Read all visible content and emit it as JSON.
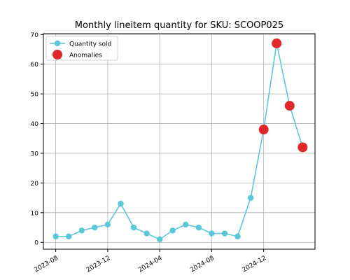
{
  "chart_data": {
    "type": "line",
    "title": "Monthly lineitem quantity for SKU: SCOOP025",
    "x": [
      "2023-08",
      "2023-09",
      "2023-10",
      "2023-11",
      "2023-12",
      "2024-01",
      "2024-02",
      "2024-03",
      "2024-04",
      "2024-05",
      "2024-06",
      "2024-07",
      "2024-08",
      "2024-09",
      "2024-10",
      "2024-11",
      "2024-12",
      "2025-01",
      "2025-02",
      "2025-03"
    ],
    "series": [
      {
        "name": "Quantity sold",
        "color": "#5bc8da",
        "style": "line-markers",
        "values": [
          2,
          2,
          4,
          5,
          6,
          13,
          5,
          3,
          1,
          4,
          6,
          5,
          3,
          3,
          2,
          15,
          38,
          67,
          46,
          32
        ]
      },
      {
        "name": "Anomalies",
        "color": "#e0282a",
        "style": "markers",
        "values": [
          null,
          null,
          null,
          null,
          null,
          null,
          null,
          null,
          null,
          null,
          null,
          null,
          null,
          null,
          null,
          null,
          38,
          67,
          46,
          32
        ]
      }
    ],
    "xticks": [
      "2023-08",
      "2023-12",
      "2024-04",
      "2024-08",
      "2024-12"
    ],
    "ylim": [
      -2.3,
      70.3
    ],
    "yticks": [
      0,
      10,
      20,
      30,
      40,
      50,
      60,
      70
    ],
    "grid": true,
    "legend": "upper-left"
  }
}
